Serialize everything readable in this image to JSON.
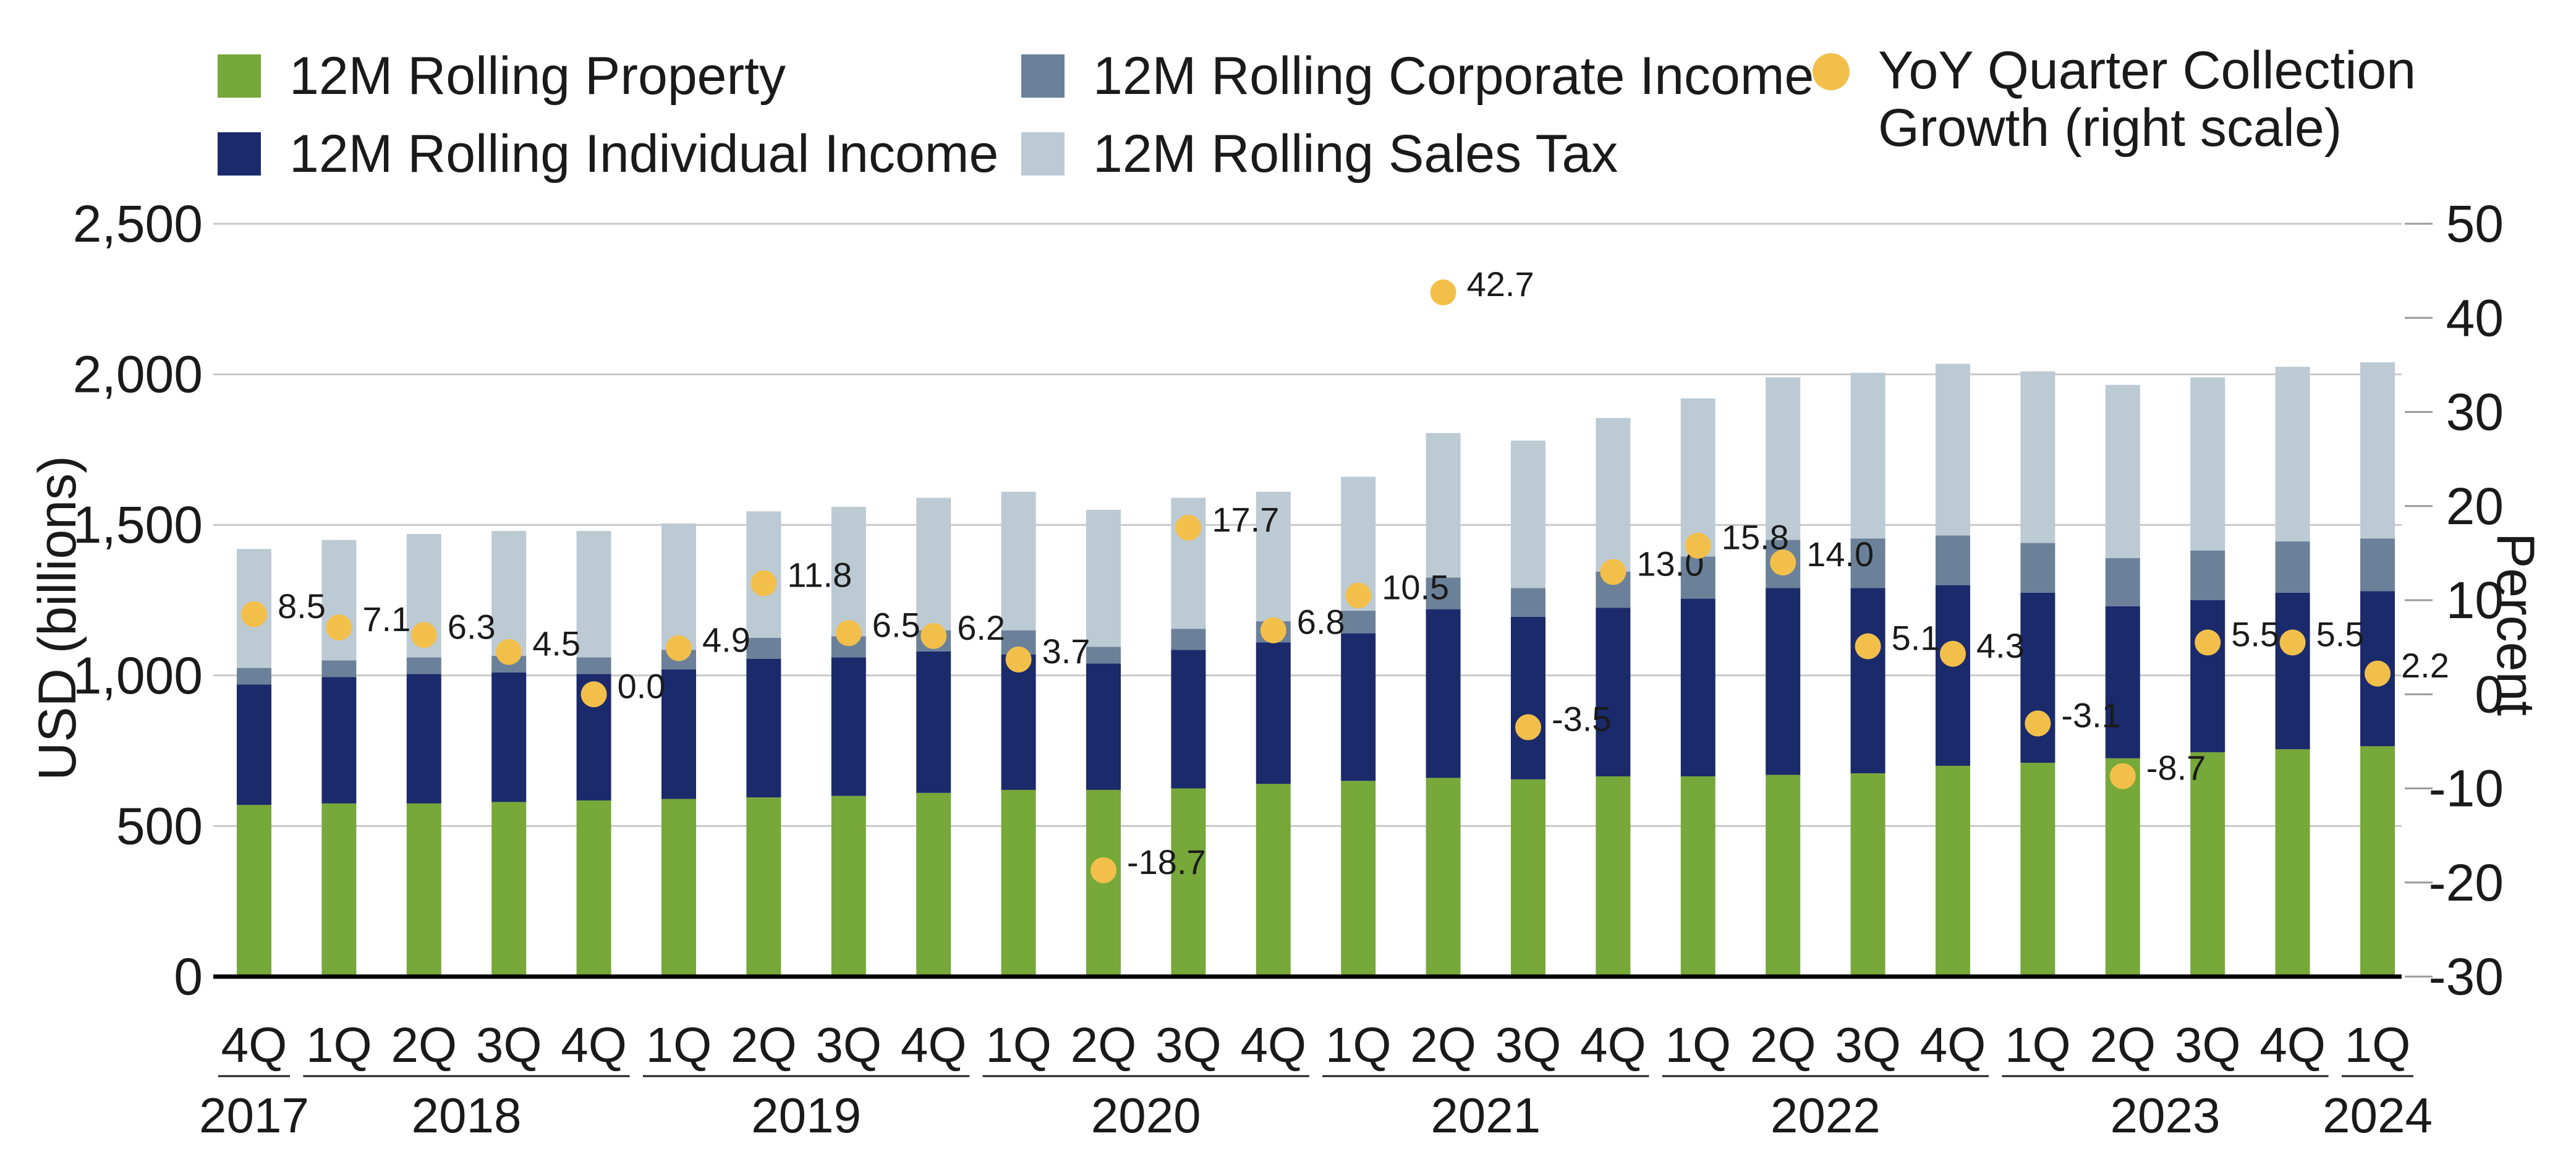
{
  "chart_data": {
    "type": "bar",
    "stacked": true,
    "legend": {
      "property": "12M Rolling Property",
      "individual": "12M Rolling Individual Income",
      "corporate": "12M Rolling Corporate Income",
      "sales": "12M Rolling Sales Tax",
      "growth_line1": "YoY Quarter Collection",
      "growth_line2": "Growth (right scale)"
    },
    "ylabel": "USD (billions)",
    "y2label": "Percent",
    "ylim": [
      0,
      2500
    ],
    "y2lim": [
      -30,
      50
    ],
    "yticks": [
      "0",
      "500",
      "1,000",
      "1,500",
      "2,000",
      "2,500"
    ],
    "y2ticks": [
      "-30",
      "-20",
      "-10",
      "0",
      "10",
      "20",
      "30",
      "40",
      "50"
    ],
    "categories": [
      "4Q",
      "1Q",
      "2Q",
      "3Q",
      "4Q",
      "1Q",
      "2Q",
      "3Q",
      "4Q",
      "1Q",
      "2Q",
      "3Q",
      "4Q",
      "1Q",
      "2Q",
      "3Q",
      "4Q",
      "1Q",
      "2Q",
      "3Q",
      "4Q",
      "1Q",
      "2Q",
      "3Q",
      "4Q",
      "1Q"
    ],
    "year_groups": [
      {
        "label": "2017",
        "start": 0,
        "end": 0
      },
      {
        "label": "2018",
        "start": 1,
        "end": 4
      },
      {
        "label": "2019",
        "start": 5,
        "end": 8
      },
      {
        "label": "2020",
        "start": 9,
        "end": 12
      },
      {
        "label": "2021",
        "start": 13,
        "end": 16
      },
      {
        "label": "2022",
        "start": 17,
        "end": 20
      },
      {
        "label": "2023",
        "start": 21,
        "end": 24
      },
      {
        "label": "2024",
        "start": 25,
        "end": 25
      }
    ],
    "series": [
      {
        "name": "12M Rolling Property",
        "key": "property",
        "color": "#76a83a",
        "values": [
          570,
          575,
          575,
          580,
          585,
          590,
          595,
          600,
          610,
          620,
          620,
          625,
          640,
          650,
          660,
          655,
          665,
          665,
          670,
          675,
          700,
          710,
          725,
          745,
          755,
          765
        ]
      },
      {
        "name": "12M Rolling Individual Income",
        "key": "individual",
        "color": "#1b2a6b",
        "values": [
          400,
          420,
          430,
          430,
          420,
          430,
          460,
          460,
          470,
          450,
          420,
          460,
          470,
          490,
          560,
          540,
          560,
          590,
          620,
          615,
          600,
          565,
          505,
          505,
          520,
          515
        ]
      },
      {
        "name": "12M Rolling Corporate Income",
        "key": "corporate",
        "color": "#6b8199",
        "values": [
          55,
          55,
          55,
          55,
          55,
          65,
          70,
          70,
          70,
          80,
          55,
          70,
          70,
          75,
          105,
          95,
          120,
          140,
          160,
          165,
          165,
          165,
          160,
          165,
          170,
          175
        ]
      },
      {
        "name": "12M Rolling Sales Tax",
        "key": "sales",
        "color": "#bccad4",
        "values": [
          395,
          400,
          410,
          415,
          420,
          420,
          420,
          430,
          440,
          460,
          455,
          435,
          430,
          445,
          480,
          490,
          510,
          525,
          540,
          550,
          570,
          570,
          575,
          575,
          580,
          585
        ]
      }
    ],
    "growth": {
      "name": "YoY Quarter Collection Growth (right scale)",
      "color": "#f2c04a",
      "values": [
        8.5,
        7.1,
        6.3,
        4.5,
        0.0,
        4.9,
        11.8,
        6.5,
        6.2,
        3.7,
        -18.7,
        17.7,
        6.8,
        10.5,
        42.7,
        -3.5,
        13.0,
        15.8,
        14.0,
        5.1,
        4.3,
        -3.1,
        -8.7,
        5.5,
        5.5,
        2.2
      ],
      "labels": [
        "8.5",
        "7.1",
        "6.3",
        "4.5",
        "0.0",
        "4.9",
        "11.8",
        "6.5",
        "6.2",
        "3.7",
        "-18.7",
        "17.7",
        "6.8",
        "10.5",
        "42.7",
        "-3.5",
        "13.0",
        "15.8",
        "14.0",
        "5.1",
        "4.3",
        "-3.1",
        "-8.7",
        "5.5",
        "5.5",
        "2.2"
      ]
    }
  }
}
